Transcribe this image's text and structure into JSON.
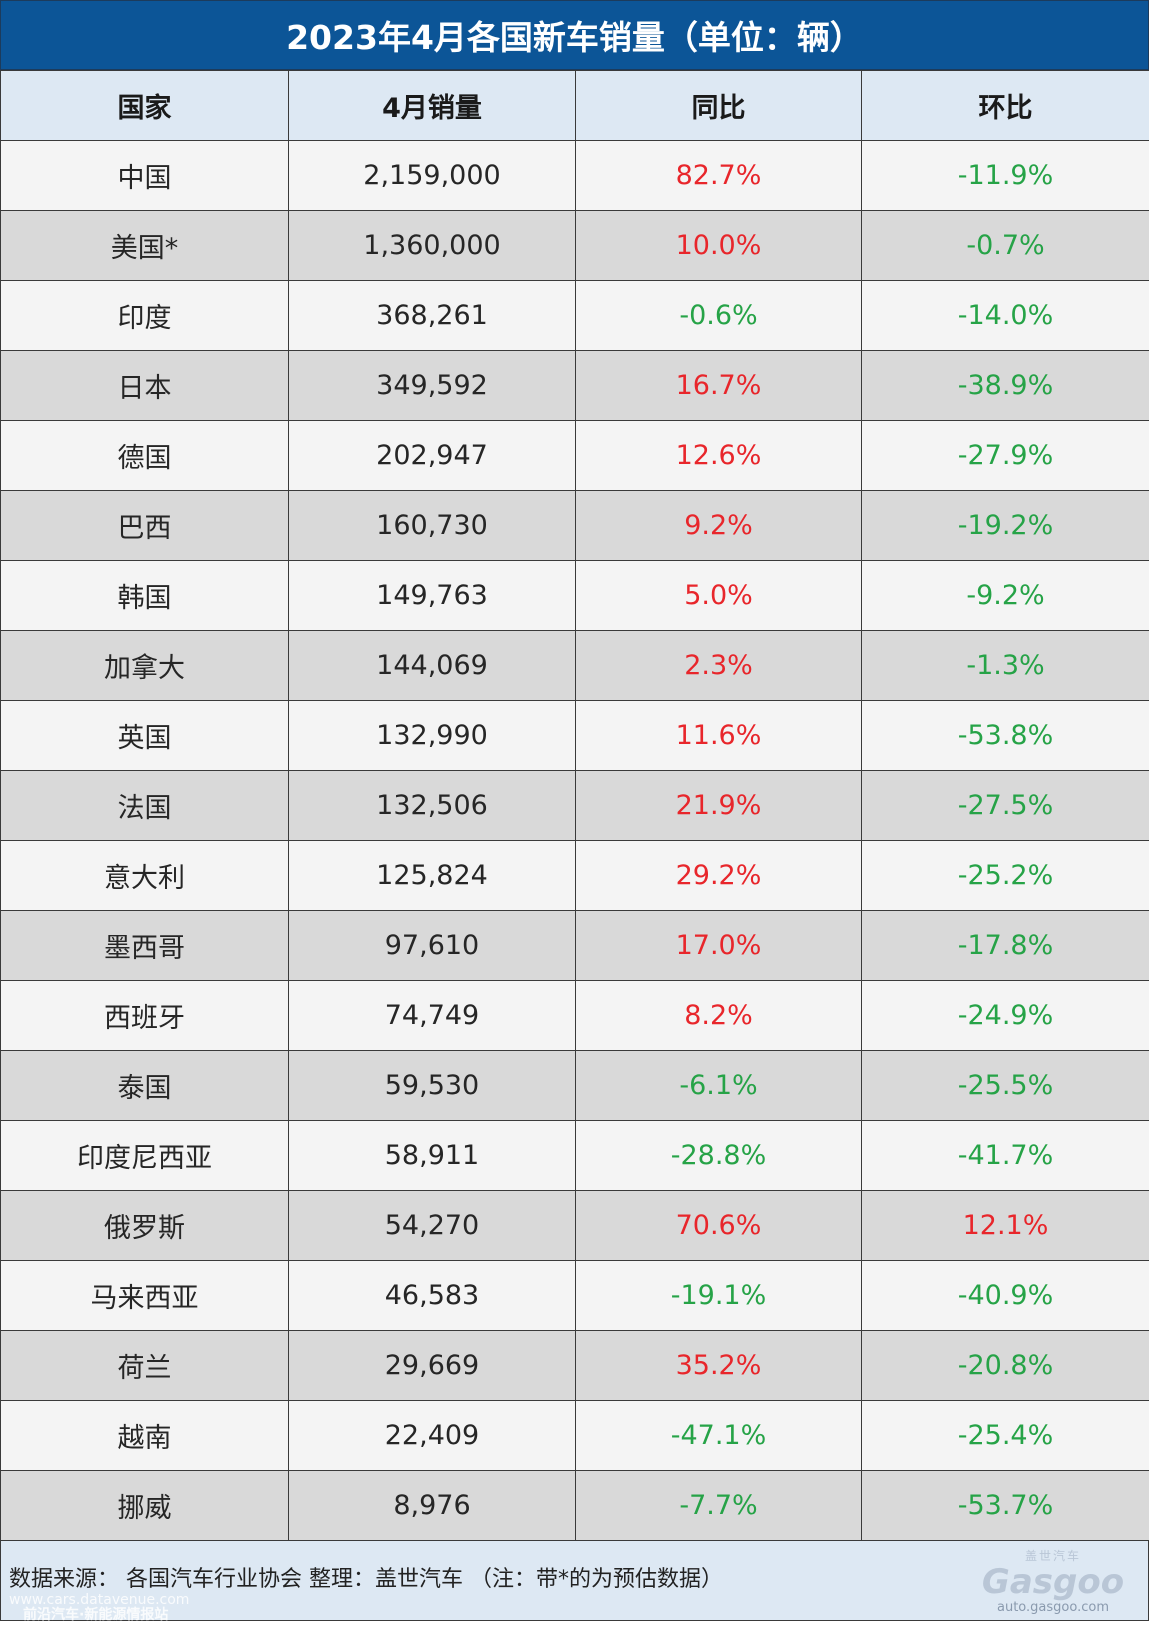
{
  "title": "2023年4月各国新车销量（单位：辆）",
  "headers": [
    "国家",
    "4月销量",
    "同比",
    "环比"
  ],
  "rows": [
    {
      "country": "中国",
      "sales": "2,159,000",
      "yoy": "82.7%",
      "mom": "-11.9%"
    },
    {
      "country": "美国*",
      "sales": "1,360,000",
      "yoy": "10.0%",
      "mom": "-0.7%"
    },
    {
      "country": "印度",
      "sales": "368,261",
      "yoy": "-0.6%",
      "mom": "-14.0%"
    },
    {
      "country": "日本",
      "sales": "349,592",
      "yoy": "16.7%",
      "mom": "-38.9%"
    },
    {
      "country": "德国",
      "sales": "202,947",
      "yoy": "12.6%",
      "mom": "-27.9%"
    },
    {
      "country": "巴西",
      "sales": "160,730",
      "yoy": "9.2%",
      "mom": "-19.2%"
    },
    {
      "country": "韩国",
      "sales": "149,763",
      "yoy": "5.0%",
      "mom": "-9.2%"
    },
    {
      "country": "加拿大",
      "sales": "144,069",
      "yoy": "2.3%",
      "mom": "-1.3%"
    },
    {
      "country": "英国",
      "sales": "132,990",
      "yoy": "11.6%",
      "mom": "-53.8%"
    },
    {
      "country": "法国",
      "sales": "132,506",
      "yoy": "21.9%",
      "mom": "-27.5%"
    },
    {
      "country": "意大利",
      "sales": "125,824",
      "yoy": "29.2%",
      "mom": "-25.2%"
    },
    {
      "country": "墨西哥",
      "sales": "97,610",
      "yoy": "17.0%",
      "mom": "-17.8%"
    },
    {
      "country": "西班牙",
      "sales": "74,749",
      "yoy": "8.2%",
      "mom": "-24.9%"
    },
    {
      "country": "泰国",
      "sales": "59,530",
      "yoy": "-6.1%",
      "mom": "-25.5%"
    },
    {
      "country": "印度尼西亚",
      "sales": "58,911",
      "yoy": "-28.8%",
      "mom": "-41.7%"
    },
    {
      "country": "俄罗斯",
      "sales": "54,270",
      "yoy": "70.6%",
      "mom": "12.1%"
    },
    {
      "country": "马来西亚",
      "sales": "46,583",
      "yoy": "-19.1%",
      "mom": "-40.9%"
    },
    {
      "country": "荷兰",
      "sales": "29,669",
      "yoy": "35.2%",
      "mom": "-20.8%"
    },
    {
      "country": "越南",
      "sales": "22,409",
      "yoy": "-47.1%",
      "mom": "-25.4%"
    },
    {
      "country": "挪威",
      "sales": "8,976",
      "yoy": "-7.7%",
      "mom": "-53.7%"
    }
  ],
  "footer": {
    "note": "数据来源： 各国汽车行业协会 整理：盖世汽车 （注：带*的为预估数据）",
    "watermark_url": "www.cars.datavenue.com",
    "watermark_text": "前沿汽车·新能源情报站",
    "logo_cn": "盖世汽车",
    "logo_brand": "Gasgoo",
    "logo_url": "auto.gasgoo.com"
  },
  "colors": {
    "title_bg": "#0c5597",
    "header_bg": "#dde8f3",
    "row_light": "#f4f4f4",
    "row_dark": "#d9d9d9",
    "positive": "#e8262b",
    "negative": "#26a347"
  }
}
